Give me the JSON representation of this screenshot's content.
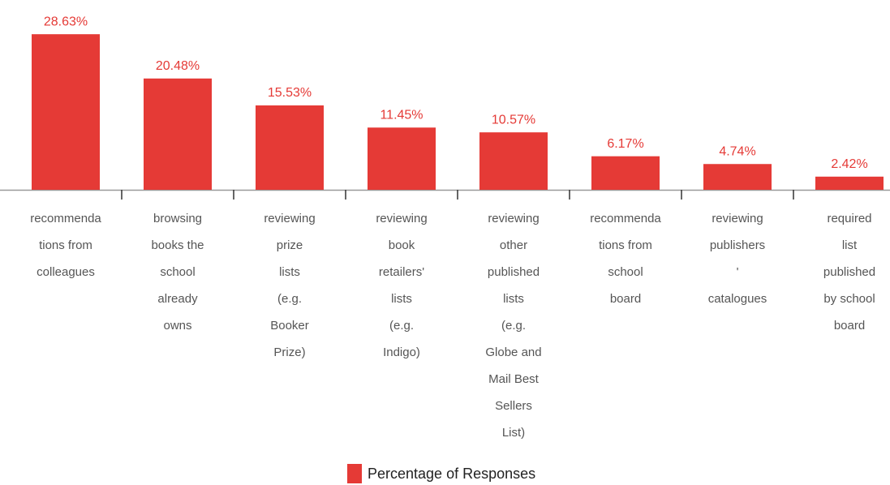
{
  "chart_data": {
    "type": "bar",
    "categories": [
      [
        "recommenda",
        "tions from",
        "colleagues"
      ],
      [
        "browsing",
        "books the",
        "school",
        "already",
        "owns"
      ],
      [
        "reviewing",
        "prize",
        "lists",
        "(e.g.",
        "Booker",
        "Prize)"
      ],
      [
        "reviewing",
        "book",
        "retailers'",
        "lists",
        "(e.g.",
        "Indigo)"
      ],
      [
        "reviewing",
        "other",
        "published",
        "lists",
        "(e.g.",
        "Globe and",
        "Mail Best",
        "Sellers",
        "List)"
      ],
      [
        "recommenda",
        "tions from",
        "school",
        "board"
      ],
      [
        "reviewing",
        "publishers",
        "'",
        "catalogues"
      ],
      [
        "required",
        "list",
        "published",
        "by school",
        "board"
      ]
    ],
    "series": [
      {
        "name": "Percentage of Responses",
        "color": "#e53a36",
        "values": [
          28.63,
          20.48,
          15.53,
          11.45,
          10.57,
          6.17,
          4.74,
          2.42
        ],
        "value_labels": [
          "28.63%",
          "20.48%",
          "15.53%",
          "11.45%",
          "10.57%",
          "6.17%",
          "4.74%",
          "2.42%"
        ]
      }
    ],
    "ylim": [
      0,
      30
    ]
  }
}
